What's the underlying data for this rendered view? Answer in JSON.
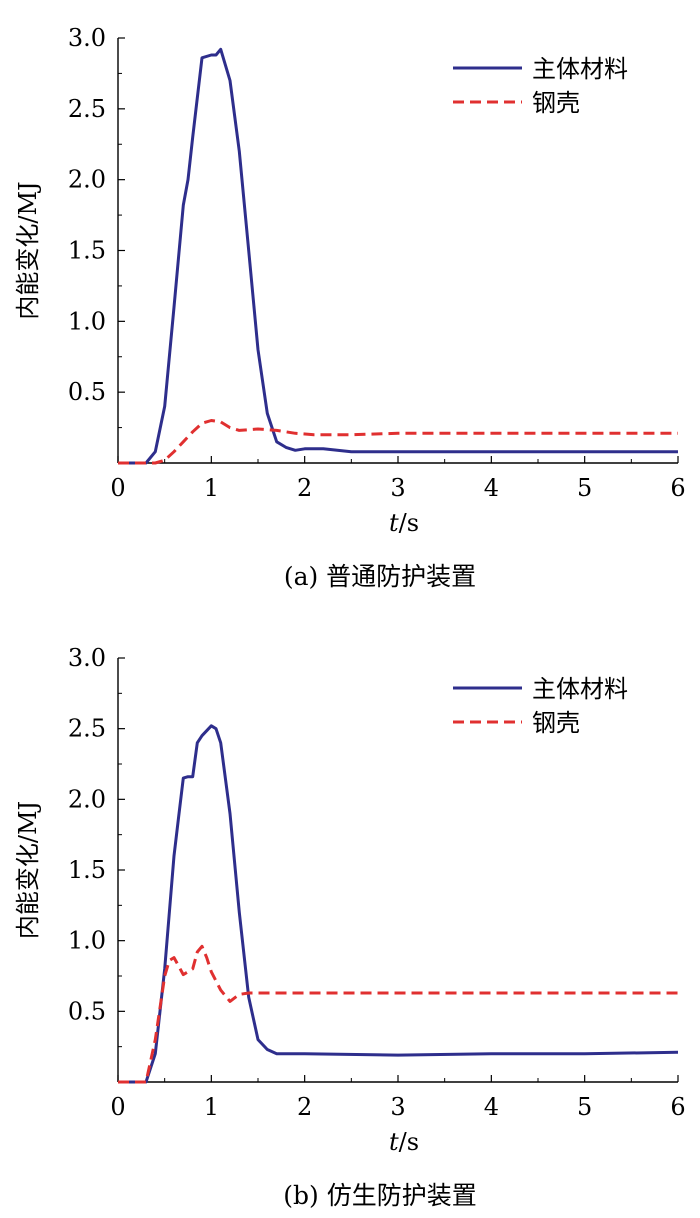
{
  "colors": {
    "main": "#2e2e8c",
    "shell": "#e03030",
    "axis": "#000000"
  },
  "chart_data": [
    {
      "type": "line",
      "caption": "(a) 普通防护装置",
      "xlabel_var": "t",
      "xlabel_unit": "/s",
      "ylabel": "内能变化/MJ",
      "xlim": [
        0,
        6
      ],
      "ylim": [
        0,
        3.0
      ],
      "xticks": [
        "0",
        "1",
        "2",
        "3",
        "4",
        "5",
        "6"
      ],
      "yticks": [
        "0.5",
        "1.0",
        "1.5",
        "2.0",
        "2.5",
        "3.0"
      ],
      "legend_position": "top-right",
      "grid": false,
      "series": [
        {
          "name": "主体材料",
          "style": "solid",
          "x": [
            0,
            0.3,
            0.4,
            0.5,
            0.6,
            0.7,
            0.75,
            0.8,
            0.9,
            1.0,
            1.05,
            1.1,
            1.2,
            1.3,
            1.4,
            1.5,
            1.6,
            1.7,
            1.8,
            1.9,
            2.0,
            2.2,
            2.5,
            3.0,
            4.0,
            5.0,
            6.0
          ],
          "y": [
            0,
            0,
            0.08,
            0.4,
            1.1,
            1.82,
            2.0,
            2.3,
            2.86,
            2.88,
            2.88,
            2.92,
            2.7,
            2.2,
            1.5,
            0.8,
            0.35,
            0.15,
            0.11,
            0.09,
            0.1,
            0.1,
            0.08,
            0.08,
            0.08,
            0.08,
            0.08
          ]
        },
        {
          "name": "钢壳",
          "style": "dashed",
          "x": [
            0,
            0.4,
            0.5,
            0.6,
            0.7,
            0.8,
            0.9,
            1.0,
            1.1,
            1.2,
            1.3,
            1.5,
            1.7,
            1.9,
            2.1,
            2.5,
            3.0,
            4.0,
            5.0,
            6.0
          ],
          "y": [
            0,
            0,
            0.02,
            0.08,
            0.15,
            0.22,
            0.28,
            0.3,
            0.29,
            0.25,
            0.23,
            0.24,
            0.23,
            0.21,
            0.2,
            0.2,
            0.21,
            0.21,
            0.21,
            0.21
          ]
        }
      ]
    },
    {
      "type": "line",
      "caption": "(b) 仿生防护装置",
      "xlabel_var": "t",
      "xlabel_unit": "/s",
      "ylabel": "内能变化/MJ",
      "xlim": [
        0,
        6
      ],
      "ylim": [
        0,
        3.0
      ],
      "xticks": [
        "0",
        "1",
        "2",
        "3",
        "4",
        "5",
        "6"
      ],
      "yticks": [
        "0.5",
        "1.0",
        "1.5",
        "2.0",
        "2.5",
        "3.0"
      ],
      "legend_position": "top-right",
      "grid": false,
      "series": [
        {
          "name": "主体材料",
          "style": "solid",
          "x": [
            0,
            0.3,
            0.4,
            0.5,
            0.6,
            0.65,
            0.7,
            0.75,
            0.8,
            0.85,
            0.9,
            1.0,
            1.05,
            1.1,
            1.2,
            1.3,
            1.4,
            1.5,
            1.6,
            1.7,
            2.0,
            3.0,
            4.0,
            5.0,
            6.0
          ],
          "y": [
            0,
            0,
            0.2,
            0.8,
            1.6,
            1.88,
            2.15,
            2.16,
            2.16,
            2.4,
            2.45,
            2.52,
            2.5,
            2.4,
            1.9,
            1.2,
            0.6,
            0.3,
            0.23,
            0.2,
            0.2,
            0.19,
            0.2,
            0.2,
            0.21
          ]
        },
        {
          "name": "钢壳",
          "style": "dashed",
          "x": [
            0,
            0.3,
            0.4,
            0.5,
            0.55,
            0.6,
            0.7,
            0.8,
            0.85,
            0.9,
            0.95,
            1.0,
            1.1,
            1.2,
            1.3,
            1.4,
            2.0,
            3.0,
            4.0,
            5.0,
            6.0
          ],
          "y": [
            0,
            0,
            0.3,
            0.75,
            0.86,
            0.88,
            0.76,
            0.8,
            0.92,
            0.96,
            0.88,
            0.78,
            0.65,
            0.57,
            0.62,
            0.63,
            0.63,
            0.63,
            0.63,
            0.63,
            0.63
          ]
        }
      ]
    }
  ]
}
